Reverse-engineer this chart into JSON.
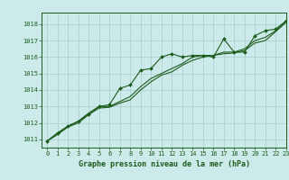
{
  "title": "Graphe pression niveau de la mer (hPa)",
  "bg_color": "#cceaea",
  "grid_color": "#aacccc",
  "line_color": "#1a5c1a",
  "xlim": [
    -0.5,
    23
  ],
  "ylim": [
    1010.5,
    1018.7
  ],
  "yticks": [
    1011,
    1012,
    1013,
    1014,
    1015,
    1016,
    1017,
    1018
  ],
  "xticks": [
    0,
    1,
    2,
    3,
    4,
    5,
    6,
    7,
    8,
    9,
    10,
    11,
    12,
    13,
    14,
    15,
    16,
    17,
    18,
    19,
    20,
    21,
    22,
    23
  ],
  "series1_x": [
    0,
    1,
    2,
    3,
    4,
    5,
    6,
    7,
    8,
    9,
    10,
    11,
    12,
    13,
    14,
    15,
    16,
    17,
    18,
    19,
    20,
    21,
    22,
    23
  ],
  "series1_y": [
    1010.9,
    1011.4,
    1011.8,
    1012.1,
    1012.5,
    1013.0,
    1013.1,
    1014.1,
    1014.3,
    1015.2,
    1015.3,
    1016.0,
    1016.2,
    1016.0,
    1016.1,
    1016.1,
    1016.0,
    1017.1,
    1016.3,
    1016.3,
    1017.3,
    1017.6,
    1017.7,
    1018.2
  ],
  "series2_x": [
    0,
    1,
    2,
    3,
    4,
    5,
    6,
    7,
    8,
    9,
    10,
    11,
    12,
    13,
    14,
    15,
    16,
    17,
    18,
    19,
    20,
    21,
    22,
    23
  ],
  "series2_y": [
    1010.9,
    1011.3,
    1011.8,
    1012.1,
    1012.6,
    1013.0,
    1013.0,
    1013.3,
    1013.6,
    1014.2,
    1014.7,
    1015.0,
    1015.3,
    1015.6,
    1016.0,
    1016.1,
    1016.1,
    1016.3,
    1016.3,
    1016.5,
    1017.0,
    1017.2,
    1017.6,
    1018.2
  ],
  "series3_x": [
    0,
    1,
    2,
    3,
    4,
    5,
    6,
    7,
    8,
    9,
    10,
    11,
    12,
    13,
    14,
    15,
    16,
    17,
    18,
    19,
    20,
    21,
    22,
    23
  ],
  "series3_y": [
    1010.9,
    1011.3,
    1011.75,
    1012.0,
    1012.5,
    1012.9,
    1012.95,
    1013.2,
    1013.4,
    1014.0,
    1014.5,
    1014.9,
    1015.1,
    1015.5,
    1015.8,
    1016.0,
    1016.1,
    1016.2,
    1016.25,
    1016.4,
    1016.85,
    1017.0,
    1017.55,
    1018.1
  ]
}
